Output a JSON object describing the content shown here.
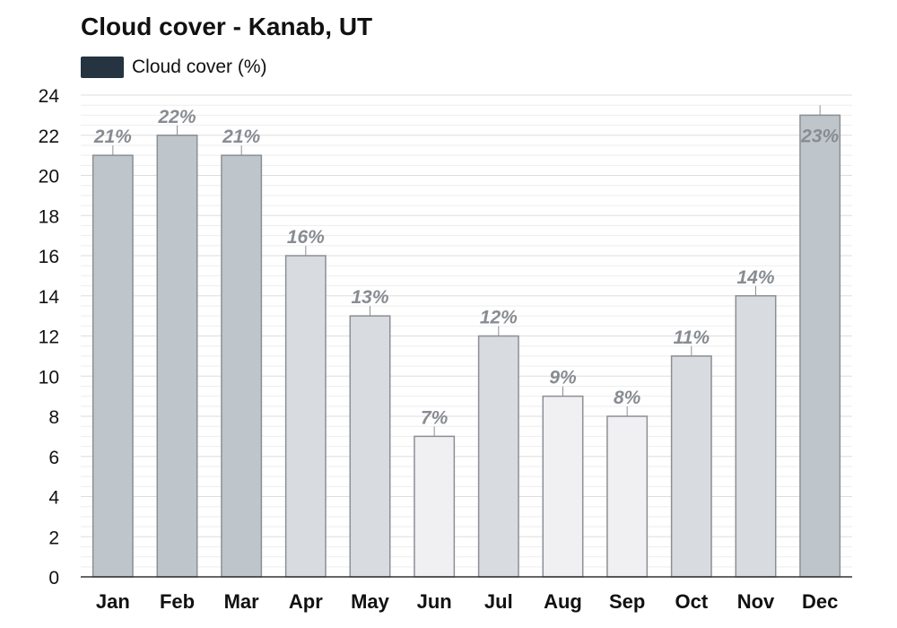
{
  "chart_data": {
    "type": "bar",
    "title": "Cloud cover - Kanab, UT",
    "legend": {
      "label": "Cloud cover (%)",
      "color": "#263340",
      "placement": "top-left"
    },
    "categories": [
      "Jan",
      "Feb",
      "Mar",
      "Apr",
      "May",
      "Jun",
      "Jul",
      "Aug",
      "Sep",
      "Oct",
      "Nov",
      "Dec"
    ],
    "series": [
      {
        "name": "Cloud cover (%)",
        "values": [
          21,
          22,
          21,
          16,
          13,
          7,
          12,
          9,
          8,
          11,
          14,
          23
        ],
        "labels": [
          "21%",
          "22%",
          "21%",
          "16%",
          "13%",
          "7%",
          "12%",
          "9%",
          "8%",
          "11%",
          "14%",
          "23%"
        ],
        "colors": [
          "#bfc6cb",
          "#bfc6cb",
          "#bfc6cb",
          "#d8dce0",
          "#d8dce0",
          "#f0f0f3",
          "#d8dce0",
          "#f0f0f3",
          "#f0f0f3",
          "#d8dce0",
          "#d8dce0",
          "#bfc6cb"
        ]
      }
    ],
    "yticks": [
      "0",
      "2",
      "4",
      "6",
      "8",
      "10",
      "12",
      "14",
      "16",
      "18",
      "20",
      "22",
      "24"
    ],
    "xlabel": "",
    "ylabel": "",
    "ylim": [
      0,
      24
    ],
    "grid": true,
    "colors": {
      "bar_border": "#8b8f93",
      "label_text": "#888c92",
      "axis_text": "#111111",
      "grid_major": "#dddddd",
      "grid_minor": "#eeeeee"
    }
  }
}
